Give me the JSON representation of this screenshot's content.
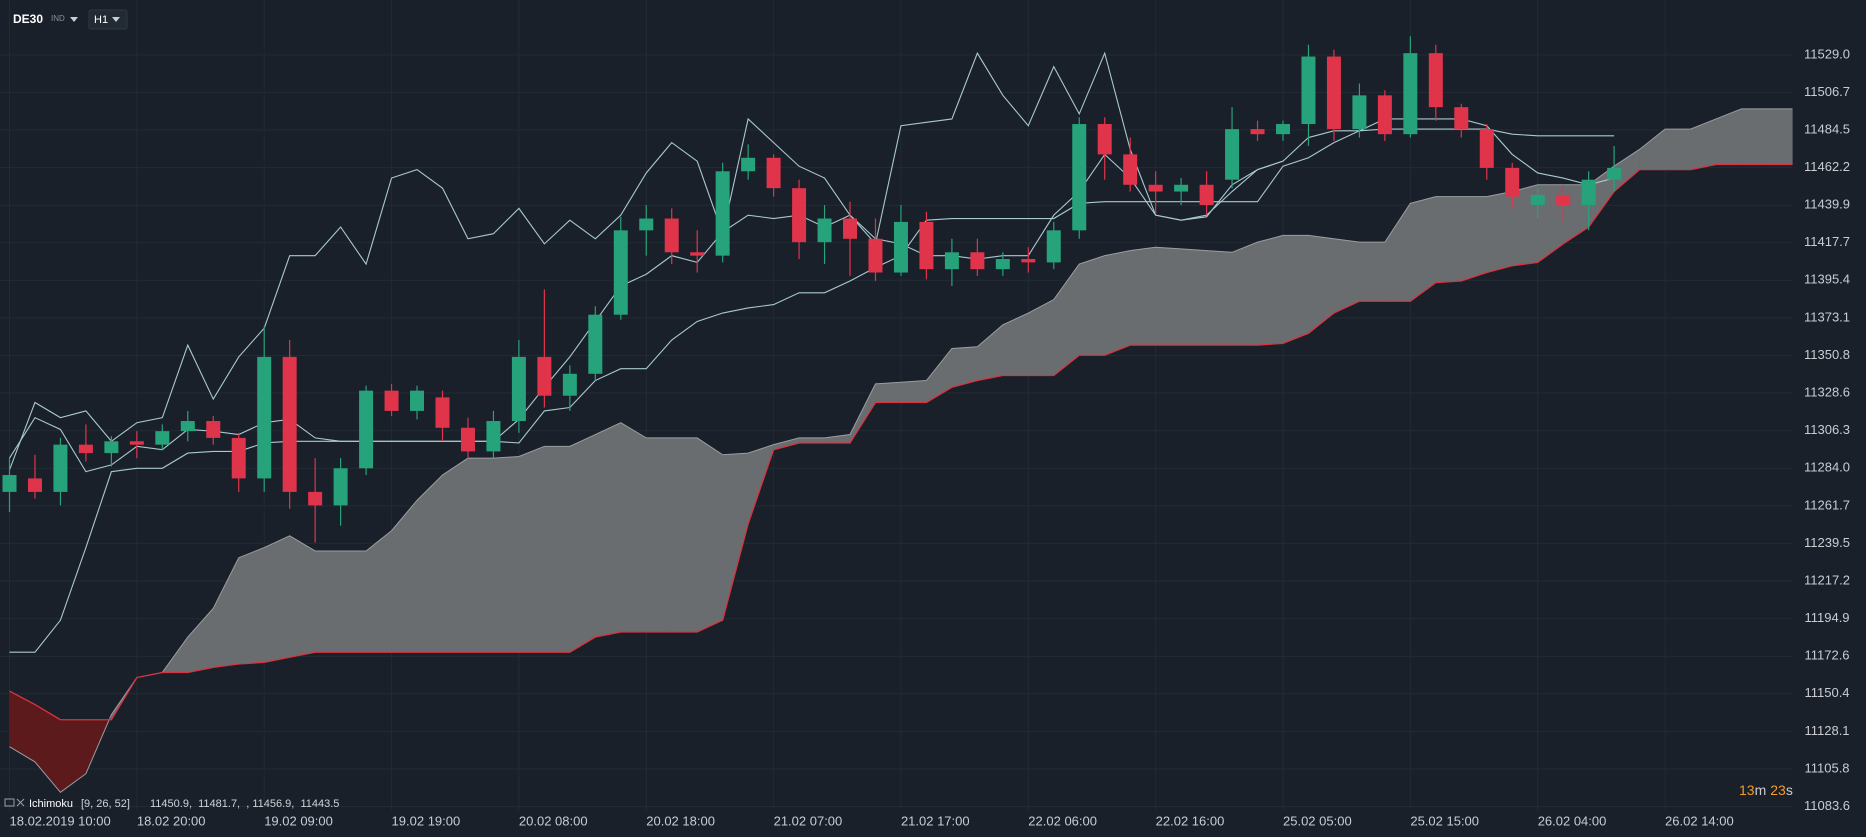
{
  "header": {
    "symbol": "DE30",
    "market": "IND",
    "timeframe": "H1"
  },
  "indicator_legend": {
    "name": "Ichimoku",
    "params": "[9, 26, 52]",
    "readout": "11450.9,  11481.7,  , 11456.9,  11443.5"
  },
  "countdown": [
    "13",
    "m",
    "23",
    "s"
  ],
  "chart_data": {
    "type": "candlestick",
    "categories": [
      "18.02.2019 10:00",
      null,
      null,
      null,
      null,
      "18.02 20:00",
      null,
      null,
      null,
      null,
      "19.02 09:00",
      null,
      null,
      null,
      null,
      "19.02 19:00",
      null,
      null,
      null,
      null,
      "20.02 08:00",
      null,
      null,
      null,
      null,
      "20.02 18:00",
      null,
      null,
      null,
      null,
      "21.02 07:00",
      null,
      null,
      null,
      null,
      "21.02 17:00",
      null,
      null,
      null,
      null,
      "22.02 06:00",
      null,
      null,
      null,
      null,
      "22.02 16:00",
      null,
      null,
      null,
      null,
      "25.02 05:00",
      null,
      null,
      null,
      null,
      "25.02 15:00",
      null,
      null,
      null,
      null,
      "26.02 04:00",
      null,
      null,
      null,
      null,
      "26.02 14:00",
      null,
      null,
      null,
      null,
      null
    ],
    "open": [
      11270,
      11278,
      11270,
      11298,
      11293,
      11300,
      11298,
      11306,
      11312,
      11302,
      11278,
      11350,
      11270,
      11262,
      11284,
      11330,
      11318,
      11326,
      11308,
      11294,
      11312,
      11350,
      11327,
      11340,
      11375,
      11425,
      11432,
      11412,
      11410,
      11460,
      11468,
      11450,
      11418,
      11432,
      11420,
      11400,
      11430,
      11402,
      11412,
      11402,
      11408,
      11406,
      11425,
      11488,
      11470,
      11452,
      11448,
      11452,
      11455,
      11485,
      11482,
      11488,
      11528,
      11485,
      11505,
      11482,
      11530,
      11498,
      11485,
      11462,
      11440,
      11446,
      11440,
      11455,
      null,
      null,
      null,
      null,
      null,
      null,
      null
    ],
    "high": [
      11290,
      11292,
      11302,
      11310,
      11303,
      11306,
      11310,
      11318,
      11315,
      11305,
      11368,
      11360,
      11290,
      11290,
      11333,
      11334,
      11333,
      11330,
      11314,
      11318,
      11360,
      11390,
      11345,
      11380,
      11433,
      11440,
      11438,
      11425,
      11465,
      11476,
      11470,
      11455,
      11440,
      11442,
      11432,
      11440,
      11436,
      11420,
      11420,
      11412,
      11415,
      11430,
      11492,
      11492,
      11480,
      11460,
      11456,
      11460,
      11498,
      11490,
      11490,
      11535,
      11532,
      11512,
      11508,
      11540,
      11535,
      11500,
      11488,
      11465,
      11450,
      11452,
      11460,
      11475,
      null,
      null,
      null,
      null,
      null,
      null,
      null
    ],
    "low": [
      11258,
      11266,
      11262,
      11288,
      11285,
      11290,
      11295,
      11300,
      11298,
      11270,
      11270,
      11260,
      11240,
      11250,
      11280,
      11315,
      11313,
      11300,
      11290,
      11290,
      11305,
      11320,
      11318,
      11336,
      11372,
      11410,
      11405,
      11400,
      11406,
      11455,
      11445,
      11408,
      11405,
      11398,
      11395,
      11398,
      11396,
      11392,
      11398,
      11398,
      11400,
      11402,
      11420,
      11455,
      11448,
      11435,
      11440,
      11434,
      11450,
      11478,
      11478,
      11475,
      11478,
      11480,
      11478,
      11480,
      11490,
      11480,
      11455,
      11438,
      11432,
      11430,
      11425,
      11448,
      null,
      null,
      null,
      null,
      null,
      null,
      null
    ],
    "close": [
      11280,
      11270,
      11298,
      11293,
      11300,
      11298,
      11306,
      11312,
      11302,
      11278,
      11350,
      11270,
      11262,
      11284,
      11330,
      11318,
      11330,
      11308,
      11294,
      11312,
      11350,
      11327,
      11340,
      11375,
      11425,
      11432,
      11412,
      11410,
      11460,
      11468,
      11450,
      11418,
      11432,
      11420,
      11400,
      11430,
      11402,
      11412,
      11402,
      11408,
      11406,
      11425,
      11488,
      11470,
      11452,
      11448,
      11452,
      11440,
      11485,
      11482,
      11488,
      11528,
      11485,
      11505,
      11482,
      11530,
      11498,
      11485,
      11462,
      11445,
      11446,
      11440,
      11455,
      11462,
      null,
      null,
      null,
      null,
      null,
      null,
      null
    ],
    "up_color": "#26a37a",
    "down_color": "#e0344b",
    "lines": [
      {
        "color": "#a9c9cf",
        "values": [
          11290,
          11314,
          11307,
          11282,
          11286,
          11297,
          11295,
          11307,
          11306,
          11304,
          11311,
          11313,
          11302,
          11300,
          11300,
          11300,
          11300,
          11300,
          11300,
          11300,
          11313,
          11332,
          11350,
          11371,
          11392,
          11399,
          11410,
          11406,
          11424,
          11434,
          11432,
          11434,
          11427,
          11434,
          11420,
          11417,
          11410,
          11410,
          11408,
          11410,
          11410,
          11434,
          11448,
          11470,
          11456,
          11434,
          11431,
          11434,
          11448,
          11461,
          11466,
          11480,
          11484,
          11484,
          11491,
          11491,
          11491,
          11491,
          11487,
          11470,
          11459,
          11456,
          11452,
          11456,
          null,
          null,
          null,
          null,
          null,
          null,
          null
        ]
      },
      {
        "color": "#a9c9cf",
        "values": [
          11175,
          11175,
          11194,
          11237,
          11282,
          11284,
          11284,
          11293,
          11294,
          11294,
          11299,
          11300,
          11300,
          11300,
          11300,
          11300,
          11300,
          11300,
          11300,
          11300,
          11299,
          11318,
          11320,
          11336,
          11343,
          11343,
          11360,
          11371,
          11376,
          11379,
          11381,
          11388,
          11388,
          11395,
          11403,
          11410,
          11431,
          11432,
          11432,
          11432,
          11432,
          11432,
          11441,
          11442,
          11442,
          11442,
          11442,
          11442,
          11442,
          11442,
          11463,
          11468,
          11477,
          11484,
          11485,
          11485,
          11485,
          11485,
          11485,
          11482,
          11481,
          11481,
          11481,
          11481,
          null,
          null,
          null,
          null,
          null,
          null,
          null
        ]
      },
      {
        "color": "#a9c9cf",
        "values": [
          11283,
          11323,
          11314,
          11318,
          11300,
          11311,
          11314,
          11357,
          11325,
          11350,
          11367,
          11410,
          11410,
          11427,
          11405,
          11456,
          11461,
          11450,
          11420,
          11423,
          11438,
          11417,
          11431,
          11420,
          11434,
          11459,
          11477,
          11466,
          11423,
          11491,
          11477,
          11463,
          11456,
          11434,
          11417,
          11487,
          11489,
          11491,
          11530,
          11505,
          11487,
          11522,
          11494,
          11530,
          11473,
          11434,
          11431,
          11433,
          11452,
          11461,
          11466,
          null,
          null,
          null,
          null,
          null,
          null,
          null,
          null,
          null,
          null,
          null,
          null,
          null,
          null,
          null,
          null,
          null,
          null,
          null,
          null
        ]
      }
    ],
    "cloud": {
      "span_a": [
        11119,
        11110,
        11092,
        11103,
        11138,
        11160,
        11163,
        11184,
        11201,
        11231,
        11237,
        11244,
        11235,
        11235,
        11235,
        11247,
        11265,
        11280,
        11290,
        11290,
        11291,
        11297,
        11297,
        11304,
        11311,
        11302,
        11302,
        11302,
        11292,
        11293,
        11298,
        11302,
        11302,
        11304,
        11334,
        11335,
        11336,
        11355,
        11356,
        11369,
        11376,
        11384,
        11405,
        11410,
        11413,
        11415,
        11414,
        11413,
        11412,
        11418,
        11422,
        11422,
        11420,
        11418,
        11418,
        11441,
        11445,
        11445,
        11445,
        11448,
        11452,
        11452,
        11452,
        11463,
        11473,
        11485,
        11485,
        11491,
        11497,
        11497,
        11497
      ],
      "span_b": [
        11152,
        11144,
        11135,
        11135,
        11135,
        11160,
        11163,
        11163,
        11166,
        11168,
        11169,
        11172,
        11175,
        11175,
        11175,
        11175,
        11175,
        11175,
        11175,
        11175,
        11175,
        11175,
        11175,
        11184,
        11187,
        11187,
        11187,
        11187,
        11194,
        11251,
        11295,
        11299,
        11299,
        11299,
        11323,
        11323,
        11323,
        11332,
        11336,
        11339,
        11339,
        11339,
        11351,
        11351,
        11357,
        11357,
        11357,
        11357,
        11357,
        11357,
        11358,
        11364,
        11376,
        11383,
        11383,
        11383,
        11394,
        11395,
        11400,
        11404,
        11406,
        11417,
        11427,
        11448,
        11461,
        11461,
        11461,
        11464,
        11464,
        11464,
        11464
      ],
      "bull_color": "#6a6d70",
      "bear_color": "#5c1a1c",
      "span_a_color": "#9a9da0",
      "span_b_color": "#d8343f"
    },
    "ylim": [
      11081.5,
      11561.5
    ],
    "yticks": [
      {
        "value": 11529,
        "label": "11529.0"
      },
      11506.7,
      11484.5,
      11462.2,
      11439.9,
      11417.7,
      11395.4,
      11373.1,
      11350.8,
      11328.6,
      11306.3,
      {
        "value": 11284,
        "label": "11284.0"
      },
      11261.7,
      11239.5,
      11217.2,
      11194.9,
      11172.6,
      11150.4,
      11128.1,
      11105.8,
      11083.6
    ],
    "grid": true
  }
}
